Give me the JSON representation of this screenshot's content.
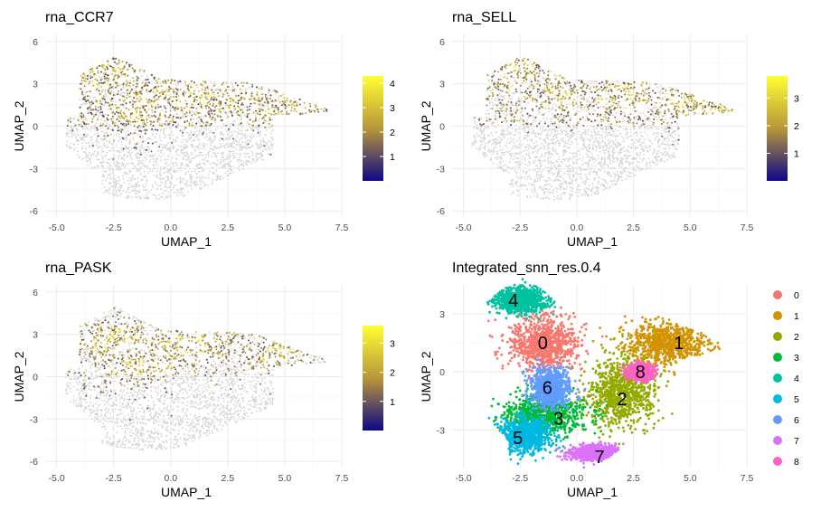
{
  "chart_data": [
    {
      "type": "scatter",
      "title": "rna_CCR7",
      "xlabel": "UMAP_1",
      "ylabel": "UMAP_2",
      "xlim": [
        -5.5,
        7.5
      ],
      "ylim": [
        -6.5,
        6.5
      ],
      "xticks": [
        -5.0,
        -2.5,
        0.0,
        2.5,
        5.0,
        7.5
      ],
      "xtick_labels": [
        "-5.0",
        "-2.5",
        "0.0",
        "2.5",
        "5.0",
        "7.5"
      ],
      "yticks": [
        6,
        3,
        0,
        -3,
        -6
      ],
      "ytick_labels": [
        "6",
        "3",
        "0",
        "-3",
        "-6"
      ],
      "color_scale": {
        "low": "#0d0887",
        "mid": "#b8963a",
        "high": "#ffff33",
        "zero": "#d3d3d3",
        "range": [
          0,
          4.3
        ],
        "ticks": [
          1,
          2,
          3,
          4
        ],
        "tick_labels": [
          "1",
          "2",
          "3",
          "4"
        ]
      },
      "hotspots": [
        [
          -3.5,
          3.3
        ],
        [
          -2.5,
          4.2
        ],
        [
          -0.5,
          2.3
        ],
        [
          1.0,
          2.0
        ],
        [
          3.0,
          1.8
        ],
        [
          5.5,
          1.5
        ],
        [
          -1.5,
          0.8
        ]
      ],
      "expressing_fraction": 0.55,
      "grid": true,
      "legend": "right"
    },
    {
      "type": "scatter",
      "title": "rna_SELL",
      "xlabel": "UMAP_1",
      "ylabel": "UMAP_2",
      "xlim": [
        -5.5,
        7.5
      ],
      "ylim": [
        -6.5,
        6.5
      ],
      "xticks": [
        -5.0,
        -2.5,
        0.0,
        2.5,
        5.0,
        7.5
      ],
      "xtick_labels": [
        "-5.0",
        "-2.5",
        "0.0",
        "2.5",
        "5.0",
        "7.5"
      ],
      "yticks": [
        6,
        3,
        0,
        -3,
        -6
      ],
      "ytick_labels": [
        "6",
        "3",
        "0",
        "-3",
        "-6"
      ],
      "color_scale": {
        "low": "#0d0887",
        "mid": "#b8963a",
        "high": "#ffff33",
        "zero": "#d3d3d3",
        "range": [
          0,
          3.8
        ],
        "ticks": [
          1,
          2,
          3
        ],
        "tick_labels": [
          "1",
          "2",
          "3"
        ]
      },
      "hotspots": [
        [
          -2.5,
          4.0
        ],
        [
          -1.0,
          2.5
        ],
        [
          2.0,
          2.3
        ],
        [
          5.0,
          1.5
        ],
        [
          6.0,
          1.3
        ]
      ],
      "expressing_fraction": 0.5,
      "grid": true,
      "legend": "right"
    },
    {
      "type": "scatter",
      "title": "rna_PASK",
      "xlabel": "UMAP_1",
      "ylabel": "UMAP_2",
      "xlim": [
        -5.5,
        7.5
      ],
      "ylim": [
        -6.5,
        6.5
      ],
      "xticks": [
        -5.0,
        -2.5,
        0.0,
        2.5,
        5.0,
        7.5
      ],
      "xtick_labels": [
        "-5.0",
        "-2.5",
        "0.0",
        "2.5",
        "5.0",
        "7.5"
      ],
      "yticks": [
        6,
        3,
        0,
        -3,
        -6
      ],
      "ytick_labels": [
        "6",
        "3",
        "0",
        "-3",
        "-6"
      ],
      "color_scale": {
        "low": "#0d0887",
        "mid": "#b8963a",
        "high": "#ffff33",
        "zero": "#d3d3d3",
        "range": [
          0,
          3.6
        ],
        "ticks": [
          1,
          2,
          3
        ],
        "tick_labels": [
          "1",
          "2",
          "3"
        ]
      },
      "hotspots": [
        [
          -2.5,
          2.5
        ],
        [
          0.0,
          2.2
        ],
        [
          1.5,
          2.5
        ],
        [
          4.5,
          1.8
        ],
        [
          -1.5,
          0.5
        ]
      ],
      "expressing_fraction": 0.35,
      "grid": true,
      "legend": "right"
    },
    {
      "type": "scatter",
      "title": "Integrated_snn_res.0.4",
      "xlabel": "UMAP_1",
      "ylabel": "UMAP_2",
      "xlim": [
        -5.5,
        7.5
      ],
      "ylim": [
        -5.0,
        4.5
      ],
      "xticks": [
        -5.0,
        -2.5,
        0.0,
        2.5,
        5.0,
        7.5
      ],
      "xtick_labels": [
        "-5.0",
        "-2.5",
        "0.0",
        "2.5",
        "5.0",
        "7.5"
      ],
      "yticks": [
        3,
        0,
        -3
      ],
      "ytick_labels": [
        "3",
        "0",
        "-3"
      ],
      "grid": true,
      "legend": "right",
      "clusters": [
        {
          "name": "0",
          "color": "#F8766D",
          "center": [
            -1.5,
            1.5
          ],
          "spread": [
            1.4,
            1.3
          ],
          "label_pos": [
            -1.5,
            1.5
          ]
        },
        {
          "name": "1",
          "color": "#D39200",
          "center": [
            4.0,
            1.5
          ],
          "spread": [
            1.7,
            1.0
          ],
          "label_pos": [
            4.5,
            1.5
          ]
        },
        {
          "name": "2",
          "color": "#93AA00",
          "center": [
            2.0,
            -1.0
          ],
          "spread": [
            1.4,
            1.6
          ],
          "label_pos": [
            2.0,
            -1.4
          ]
        },
        {
          "name": "3",
          "color": "#00BA38",
          "center": [
            -1.5,
            -2.2
          ],
          "spread": [
            1.6,
            0.9
          ],
          "label_pos": [
            -0.8,
            -2.4
          ]
        },
        {
          "name": "4",
          "color": "#00C19F",
          "center": [
            -2.5,
            3.7
          ],
          "spread": [
            1.1,
            0.6
          ],
          "label_pos": [
            -2.8,
            3.7
          ]
        },
        {
          "name": "5",
          "color": "#00B9E3",
          "center": [
            -2.3,
            -3.3
          ],
          "spread": [
            1.1,
            0.8
          ],
          "label_pos": [
            -2.6,
            -3.4
          ]
        },
        {
          "name": "6",
          "color": "#619CFF",
          "center": [
            -1.2,
            -0.8
          ],
          "spread": [
            0.8,
            0.9
          ],
          "label_pos": [
            -1.3,
            -0.8
          ]
        },
        {
          "name": "7",
          "color": "#DB72FB",
          "center": [
            0.8,
            -4.2
          ],
          "spread": [
            1.0,
            0.35
          ],
          "label_pos": [
            1.0,
            -4.4
          ]
        },
        {
          "name": "8",
          "color": "#FF61C3",
          "center": [
            2.8,
            0.0
          ],
          "spread": [
            0.5,
            0.35
          ],
          "label_pos": [
            2.8,
            0.0
          ]
        }
      ]
    }
  ]
}
